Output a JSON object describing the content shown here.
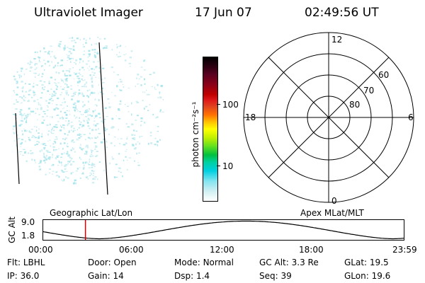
{
  "header": {
    "title": "Ultraviolet Imager",
    "date": "17 Jun 07",
    "time": "02:49:56 UT"
  },
  "colorbar": {
    "label": "photon cm⁻²s⁻¹",
    "ticks": [
      "100",
      "10"
    ]
  },
  "polar": {
    "mlt_labels": [
      "12",
      "6",
      "0",
      "18"
    ],
    "lat_labels": [
      "60",
      "70",
      "80"
    ]
  },
  "altitude_plot": {
    "left_title": "Geographic Lat/Lon",
    "right_title": "Apex MLat/MLT",
    "ylabel": "GC Alt",
    "yticks": [
      "9.0",
      "1.8"
    ],
    "xticks": [
      "00:00",
      "06:00",
      "12:00",
      "18:00",
      "23:59"
    ],
    "marker_time_hours": 2.83
  },
  "status": {
    "row1": [
      {
        "label": "Flt:",
        "value": "LBHL"
      },
      {
        "label": "Door:",
        "value": "Open"
      },
      {
        "label": "Mode:",
        "value": "Normal"
      },
      {
        "label": "GC Alt:",
        "value": "3.3 Re"
      },
      {
        "label": "GLat:",
        "value": "19.5"
      }
    ],
    "row2": [
      {
        "label": "IP:",
        "value": "36.0"
      },
      {
        "label": "Gain:",
        "value": "14"
      },
      {
        "label": "Dsp:",
        "value": "1.4"
      },
      {
        "label": "Seq:",
        "value": "39"
      },
      {
        "label": "GLon:",
        "value": "19.6"
      }
    ]
  },
  "colors": {
    "speckle": "#aee6ee",
    "marker": "#d40000"
  }
}
